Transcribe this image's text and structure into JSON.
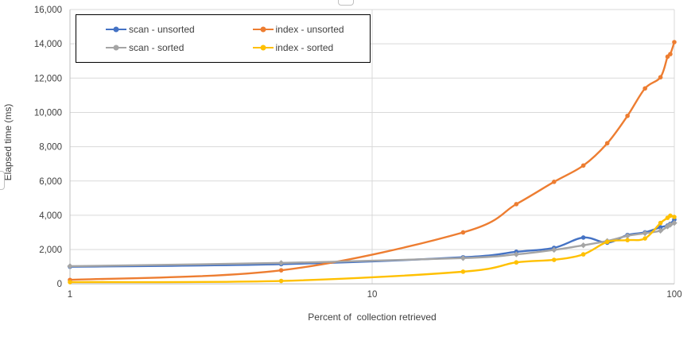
{
  "chart_data": {
    "type": "line",
    "title": "",
    "xlabel": "Percent of  collection retrieved",
    "ylabel": "Elapsed time (ms)",
    "x_scale": "log",
    "xlim": [
      1,
      100
    ],
    "ylim": [
      0,
      16000
    ],
    "ytick_step": 2000,
    "xticks": [
      1,
      10,
      100
    ],
    "grid": true,
    "legend_position": "top-left",
    "x": [
      1,
      5,
      20,
      30,
      40,
      50,
      60,
      70,
      80,
      90,
      95,
      97,
      100
    ],
    "series": [
      {
        "name": "scan - unsorted",
        "color": "#4472C4",
        "marker": "circle",
        "values": [
          1000,
          1150,
          1550,
          1870,
          2100,
          2700,
          2400,
          2850,
          3000,
          3300,
          3400,
          3500,
          3750
        ]
      },
      {
        "name": "index - unsorted",
        "color": "#ED7D31",
        "marker": "circle",
        "values": [
          230,
          790,
          3000,
          4650,
          5950,
          6900,
          8200,
          9800,
          11400,
          12050,
          13250,
          13400,
          14100
        ]
      },
      {
        "name": "scan - sorted",
        "color": "#A5A5A5",
        "marker": "diamond",
        "values": [
          1030,
          1220,
          1500,
          1720,
          1980,
          2250,
          2500,
          2800,
          2950,
          3100,
          3350,
          3450,
          3550
        ]
      },
      {
        "name": "index - sorted",
        "color": "#FFC000",
        "marker": "circle",
        "values": [
          100,
          170,
          710,
          1250,
          1400,
          1720,
          2450,
          2550,
          2650,
          3550,
          3850,
          3975,
          3900
        ]
      }
    ],
    "colors": {
      "gridline": "#D9D9D9",
      "axis_line": "#BFBFBF",
      "tick_text": "#404040",
      "legend_border": "#000000",
      "background": "#FFFFFF"
    }
  }
}
